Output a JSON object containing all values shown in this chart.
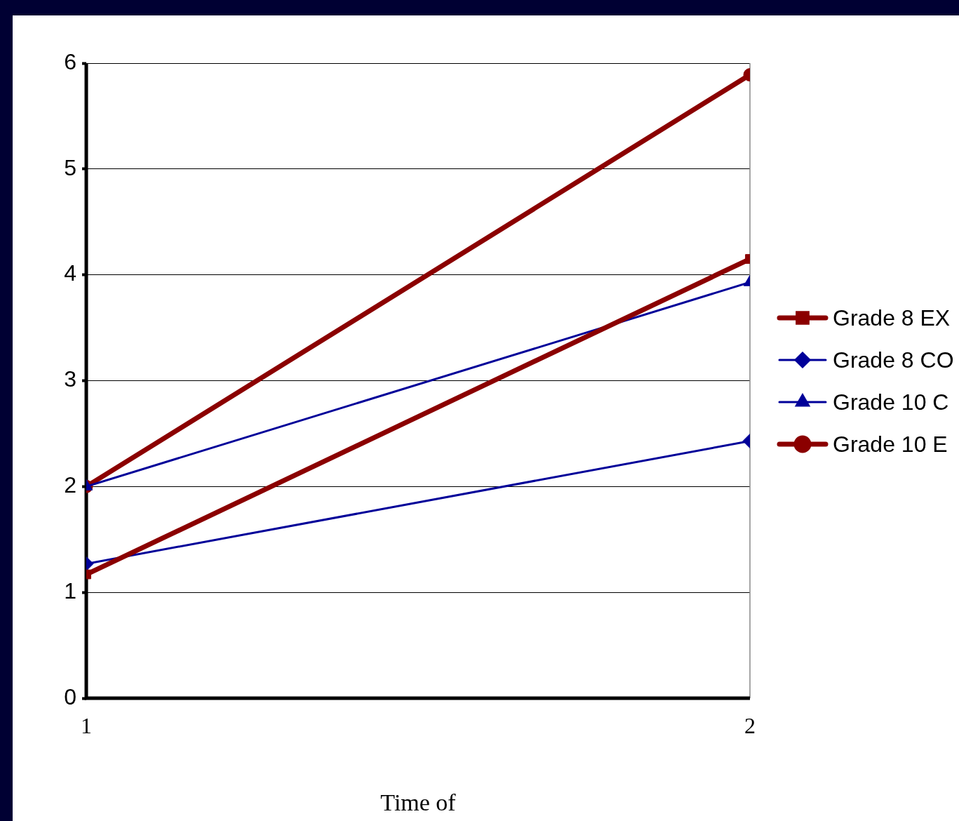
{
  "chart_data": {
    "type": "line",
    "xlabel": "Time of",
    "x": [
      1,
      2
    ],
    "xlim": [
      1,
      2
    ],
    "xticks": [
      1,
      2
    ],
    "ylim": [
      0,
      6
    ],
    "yticks": [
      0,
      1,
      2,
      3,
      4,
      5,
      6
    ],
    "grid": "y",
    "legend": "right",
    "series": [
      {
        "name": "Grade 8 EX",
        "color": "#8b0000",
        "marker": "square",
        "values": [
          1.17,
          4.15
        ]
      },
      {
        "name": "Grade 8 CO",
        "color": "#000099",
        "marker": "diamond",
        "values": [
          1.27,
          2.43
        ]
      },
      {
        "name": "Grade 10 C",
        "color": "#000099",
        "marker": "triangle",
        "values": [
          2.0,
          3.93
        ]
      },
      {
        "name": "Grade 10 E",
        "color": "#8b0000",
        "marker": "circle",
        "values": [
          2.0,
          5.89
        ]
      }
    ]
  }
}
